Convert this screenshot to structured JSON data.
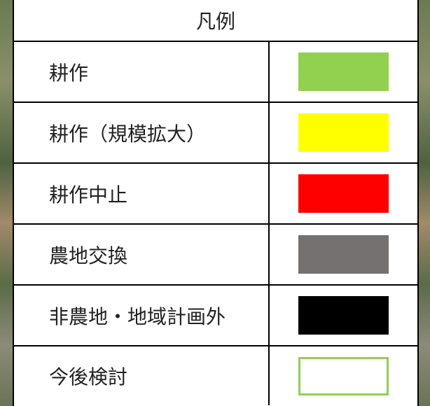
{
  "legend": {
    "title": "凡例",
    "items": [
      {
        "label": "耕作",
        "color": "#92d050"
      },
      {
        "label": "耕作（規模拡大）",
        "color": "#ffff00"
      },
      {
        "label": "耕作中止",
        "color": "#ff0000"
      },
      {
        "label": "農地交換",
        "color": "#767171"
      },
      {
        "label": "非農地・地域計画外",
        "color": "#000000"
      },
      {
        "label": "今後検討",
        "color": "#ffffff",
        "outline": "#92d050"
      }
    ]
  }
}
